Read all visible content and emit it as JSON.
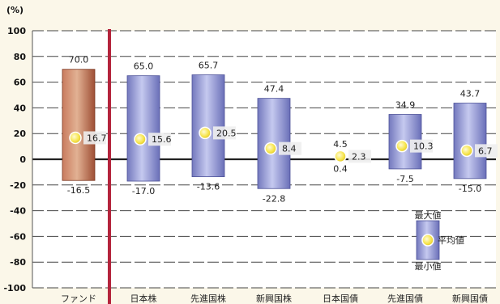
{
  "chart_data": {
    "type": "bar",
    "ylabel": "(%)",
    "ylim": [
      -100,
      100
    ],
    "yticks": [
      100,
      80,
      60,
      40,
      20,
      0,
      -20,
      -40,
      -60,
      -80,
      -100
    ],
    "grid": true,
    "categories": [
      "ファンド",
      "日本株",
      "先進国株",
      "新興国株",
      "日本国債",
      "先進国債",
      "新興国債"
    ],
    "max": [
      70.0,
      65.0,
      65.7,
      47.4,
      4.5,
      34.9,
      43.7
    ],
    "min": [
      -16.5,
      -17.0,
      -13.6,
      -22.8,
      0.4,
      -7.5,
      -15.0
    ],
    "mean": [
      16.7,
      15.6,
      20.5,
      8.4,
      2.3,
      10.3,
      6.7
    ],
    "max_labels": [
      "70.0",
      "65.0",
      "65.7",
      "47.4",
      "4.5",
      "34.9",
      "43.7"
    ],
    "min_labels": [
      "-16.5",
      "-17.0",
      "-13.6",
      "-22.8",
      "0.4",
      "-7.5",
      "-15.0"
    ],
    "mean_labels": [
      "16.7",
      "15.6",
      "20.5",
      "8.4",
      "2.3",
      "10.3",
      "6.7"
    ],
    "legend": {
      "max": "最大値",
      "mean": "平均値",
      "min": "最小値"
    },
    "colors": {
      "fund_bar": "#b8664a",
      "fund_bar_light": "#dfa88a",
      "asset_bar": "#7f84c8",
      "asset_bar_light": "#c2c6ee",
      "divider": "#b4243c",
      "mean_marker": "#f7e34a",
      "background": "#fbf7e9",
      "plot_bg": "#ffffff"
    }
  }
}
